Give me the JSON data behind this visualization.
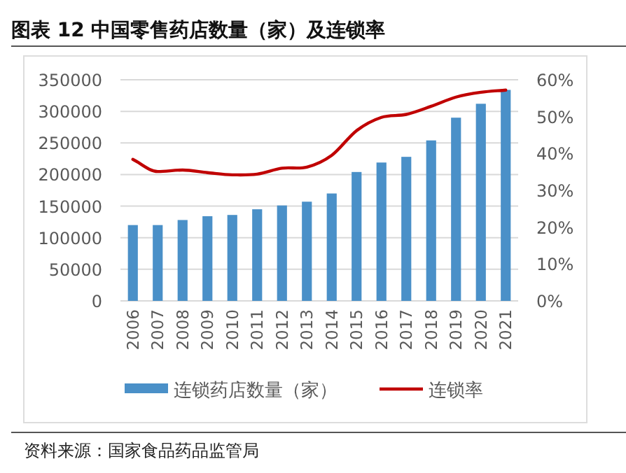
{
  "chart_data": {
    "type": "bar",
    "title": "图表 12 中国零售药店数量（家）及连锁率",
    "categories": [
      "2006",
      "2007",
      "2008",
      "2009",
      "2010",
      "2011",
      "2012",
      "2013",
      "2014",
      "2015",
      "2016",
      "2017",
      "2018",
      "2019",
      "2020",
      "2021"
    ],
    "series": [
      {
        "name": "连锁药店数量（家）",
        "type": "bar",
        "color": "#4a90c8",
        "values": [
          120000,
          120000,
          128000,
          134000,
          136000,
          145000,
          151000,
          157000,
          170000,
          204000,
          219000,
          228000,
          254000,
          290000,
          312000,
          334000
        ]
      },
      {
        "name": "连锁率",
        "type": "line",
        "axis": "y2",
        "color": "#c00000",
        "values": [
          0.384,
          0.351,
          0.355,
          0.348,
          0.342,
          0.344,
          0.36,
          0.363,
          0.395,
          0.462,
          0.498,
          0.506,
          0.528,
          0.553,
          0.566,
          0.572
        ]
      }
    ],
    "ylim": [
      0,
      350000
    ],
    "yticks": [
      0,
      50000,
      100000,
      150000,
      200000,
      250000,
      300000,
      350000
    ],
    "y2lim": [
      0,
      0.6
    ],
    "y2ticks": [
      {
        "value": 0,
        "label": "0%"
      },
      {
        "value": 0.1,
        "label": "10%"
      },
      {
        "value": 0.2,
        "label": "20%"
      },
      {
        "value": 0.3,
        "label": "30%"
      },
      {
        "value": 0.4,
        "label": "40%"
      },
      {
        "value": 0.5,
        "label": "50%"
      },
      {
        "value": 0.6,
        "label": "60%"
      }
    ],
    "grid": "y",
    "legend": "bottom",
    "line_style": "solid",
    "annotations": [
      "资料来源：国家食品药品监管局"
    ]
  }
}
